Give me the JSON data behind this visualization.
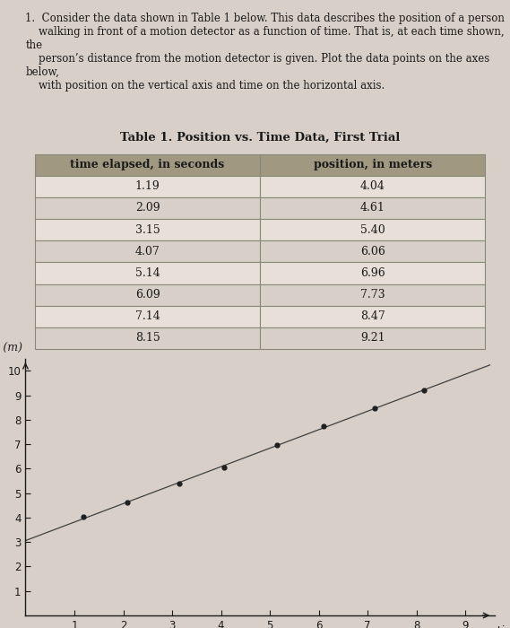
{
  "question_text": "1.  Consider the data shown in Table 1 below. This data describes the position of a person\n    walking in front of a motion detector as a function of time. That is, at each time shown, the\n    person’s distance from the motion detector is given. Plot the data points on the axes below,\n    with position on the vertical axis and time on the horizontal axis.",
  "table_title": "Table 1. Position vs. Time Data, First Trial",
  "col_headers": [
    "time elapsed, in seconds",
    "position, in meters"
  ],
  "time_data": [
    1.19,
    2.09,
    3.15,
    4.07,
    5.14,
    6.09,
    7.14,
    8.15
  ],
  "position_data": [
    4.04,
    4.61,
    5.4,
    6.06,
    6.96,
    7.73,
    8.47,
    9.21
  ],
  "xlabel": "time (s)",
  "ylabel": "position (m)",
  "xlim": [
    0,
    9.5
  ],
  "ylim": [
    0,
    10.5
  ],
  "xticks": [
    1,
    2,
    3,
    4,
    5,
    6,
    7,
    8,
    9
  ],
  "yticks": [
    1,
    2,
    3,
    4,
    5,
    6,
    7,
    8,
    9,
    10
  ],
  "bg_color": "#d8d0c8",
  "table_header_color": "#a09880",
  "table_row_colors": [
    "#e8e0d8",
    "#d8d0c8"
  ],
  "line_color": "#404040",
  "point_color": "#202020",
  "text_color": "#1a1a1a",
  "page_bg": "#d8d0c8"
}
